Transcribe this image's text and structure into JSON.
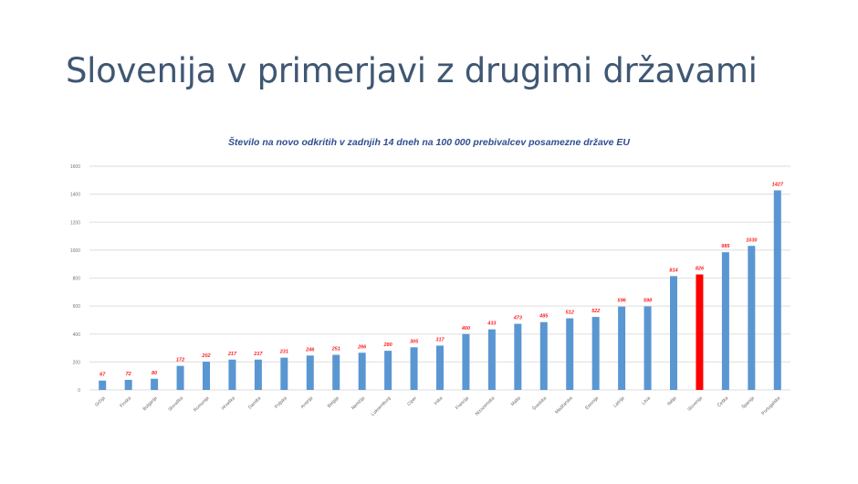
{
  "slide": {
    "title": "Slovenija v primerjavi z drugimi državami"
  },
  "colors": {
    "bar": "#5a96d2",
    "highlight_bar": "#ff0000",
    "data_label": "#ff2020",
    "gridline": "#e4e4e4",
    "title": "#3f5773",
    "subtitle": "#2f4f8f"
  },
  "chart_data": {
    "type": "bar",
    "title": "Število na novo odkritih v zadnjih 14 dneh na 100 000 prebivalcev posamezne države EU",
    "xlabel": "",
    "ylabel": "",
    "ylim": [
      0,
      1600
    ],
    "yticks": [
      0,
      200,
      400,
      600,
      800,
      1000,
      1200,
      1400,
      1600
    ],
    "grid": true,
    "legend": null,
    "highlight_category": "Slovenija",
    "categories": [
      "Grčija",
      "Finska",
      "Bulgarija",
      "Slovaška",
      "Romunija",
      "Hrvaška",
      "Danska",
      "Poljska",
      "Avstrija",
      "Belgija",
      "Nemčija",
      "Luksemburg",
      "Ciper",
      "Irska",
      "Francija",
      "Nizozemska",
      "Malta",
      "Švedska",
      "Madžarska",
      "Estonija",
      "Latvija",
      "Litva",
      "Italija",
      "Slovenija",
      "Češka",
      "Španija",
      "Portugalska"
    ],
    "values": [
      67,
      72,
      80,
      172,
      202,
      217,
      217,
      231,
      246,
      251,
      266,
      280,
      305,
      317,
      400,
      433,
      473,
      485,
      512,
      522,
      596,
      598,
      814,
      826,
      985,
      1030,
      1427
    ]
  }
}
